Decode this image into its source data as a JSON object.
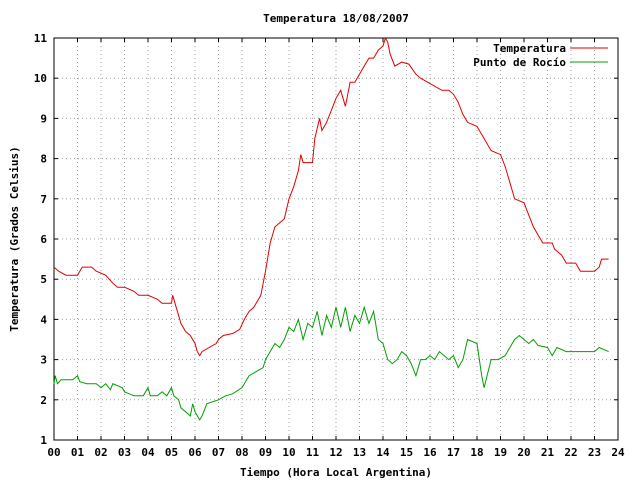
{
  "chart_data": {
    "type": "line",
    "title": "Temperatura 18/08/2007",
    "xlabel": "Tiempo (Hora Local Argentina)",
    "ylabel": "Temperatura (Grados Celsius)",
    "xlim": [
      0,
      24
    ],
    "ylim": [
      1,
      11
    ],
    "x_ticks": [
      "00",
      "01",
      "02",
      "03",
      "04",
      "05",
      "06",
      "07",
      "08",
      "09",
      "10",
      "11",
      "12",
      "13",
      "14",
      "15",
      "16",
      "17",
      "18",
      "19",
      "20",
      "21",
      "22",
      "23",
      "24"
    ],
    "y_ticks": [
      "1",
      "2",
      "3",
      "4",
      "5",
      "6",
      "7",
      "8",
      "9",
      "10",
      "11"
    ],
    "grid": true,
    "legend_position": "top-right",
    "series": [
      {
        "name": "Temperatura",
        "color": "#e00000",
        "points": [
          [
            0,
            5.3
          ],
          [
            0.2,
            5.2
          ],
          [
            0.5,
            5.1
          ],
          [
            1.0,
            5.1
          ],
          [
            1.2,
            5.3
          ],
          [
            1.6,
            5.3
          ],
          [
            1.8,
            5.2
          ],
          [
            2.2,
            5.1
          ],
          [
            2.5,
            4.9
          ],
          [
            2.7,
            4.8
          ],
          [
            3.0,
            4.8
          ],
          [
            3.4,
            4.7
          ],
          [
            3.6,
            4.6
          ],
          [
            4.0,
            4.6
          ],
          [
            4.4,
            4.5
          ],
          [
            4.6,
            4.4
          ],
          [
            5.0,
            4.4
          ],
          [
            5.05,
            4.6
          ],
          [
            5.2,
            4.3
          ],
          [
            5.4,
            3.9
          ],
          [
            5.6,
            3.7
          ],
          [
            5.8,
            3.6
          ],
          [
            6.0,
            3.4
          ],
          [
            6.1,
            3.2
          ],
          [
            6.2,
            3.1
          ],
          [
            6.3,
            3.2
          ],
          [
            6.6,
            3.3
          ],
          [
            6.9,
            3.4
          ],
          [
            7.0,
            3.5
          ],
          [
            7.2,
            3.6
          ],
          [
            7.6,
            3.65
          ],
          [
            7.9,
            3.75
          ],
          [
            8.1,
            4.0
          ],
          [
            8.3,
            4.2
          ],
          [
            8.5,
            4.3
          ],
          [
            8.8,
            4.6
          ],
          [
            9.0,
            5.2
          ],
          [
            9.2,
            5.9
          ],
          [
            9.4,
            6.3
          ],
          [
            9.6,
            6.4
          ],
          [
            9.8,
            6.5
          ],
          [
            10.0,
            7.0
          ],
          [
            10.2,
            7.3
          ],
          [
            10.4,
            7.7
          ],
          [
            10.5,
            8.1
          ],
          [
            10.6,
            7.9
          ],
          [
            11.0,
            7.9
          ],
          [
            11.1,
            8.5
          ],
          [
            11.3,
            9.0
          ],
          [
            11.4,
            8.7
          ],
          [
            11.6,
            8.9
          ],
          [
            11.8,
            9.2
          ],
          [
            12.0,
            9.5
          ],
          [
            12.2,
            9.7
          ],
          [
            12.4,
            9.3
          ],
          [
            12.6,
            9.9
          ],
          [
            12.8,
            9.9
          ],
          [
            13.0,
            10.1
          ],
          [
            13.2,
            10.3
          ],
          [
            13.4,
            10.5
          ],
          [
            13.6,
            10.5
          ],
          [
            13.8,
            10.7
          ],
          [
            14.0,
            10.8
          ],
          [
            14.1,
            11.0
          ],
          [
            14.2,
            10.9
          ],
          [
            14.3,
            10.6
          ],
          [
            14.5,
            10.3
          ],
          [
            14.8,
            10.4
          ],
          [
            15.1,
            10.35
          ],
          [
            15.4,
            10.1
          ],
          [
            15.6,
            10.0
          ],
          [
            15.9,
            9.9
          ],
          [
            16.2,
            9.8
          ],
          [
            16.5,
            9.7
          ],
          [
            16.8,
            9.7
          ],
          [
            17.0,
            9.6
          ],
          [
            17.2,
            9.4
          ],
          [
            17.4,
            9.1
          ],
          [
            17.6,
            8.9
          ],
          [
            18.0,
            8.8
          ],
          [
            18.3,
            8.5
          ],
          [
            18.6,
            8.2
          ],
          [
            19.0,
            8.1
          ],
          [
            19.2,
            7.8
          ],
          [
            19.4,
            7.4
          ],
          [
            19.6,
            7.0
          ],
          [
            20.0,
            6.9
          ],
          [
            20.2,
            6.6
          ],
          [
            20.4,
            6.3
          ],
          [
            20.6,
            6.1
          ],
          [
            20.8,
            5.9
          ],
          [
            21.2,
            5.9
          ],
          [
            21.3,
            5.75
          ],
          [
            21.6,
            5.6
          ],
          [
            21.8,
            5.4
          ],
          [
            22.2,
            5.4
          ],
          [
            22.4,
            5.2
          ],
          [
            23.0,
            5.2
          ],
          [
            23.2,
            5.3
          ],
          [
            23.3,
            5.5
          ],
          [
            23.6,
            5.5
          ]
        ]
      },
      {
        "name": "Punto de Rocío",
        "color": "#00a000",
        "points": [
          [
            0,
            2.4
          ],
          [
            0.05,
            2.6
          ],
          [
            0.15,
            2.4
          ],
          [
            0.3,
            2.5
          ],
          [
            0.8,
            2.5
          ],
          [
            1.0,
            2.6
          ],
          [
            1.1,
            2.45
          ],
          [
            1.4,
            2.4
          ],
          [
            1.8,
            2.4
          ],
          [
            2.0,
            2.3
          ],
          [
            2.2,
            2.4
          ],
          [
            2.4,
            2.25
          ],
          [
            2.5,
            2.4
          ],
          [
            2.9,
            2.3
          ],
          [
            3.0,
            2.2
          ],
          [
            3.4,
            2.1
          ],
          [
            3.8,
            2.1
          ],
          [
            4.0,
            2.3
          ],
          [
            4.1,
            2.1
          ],
          [
            4.4,
            2.1
          ],
          [
            4.6,
            2.2
          ],
          [
            4.8,
            2.1
          ],
          [
            5.0,
            2.3
          ],
          [
            5.1,
            2.1
          ],
          [
            5.3,
            2.0
          ],
          [
            5.4,
            1.8
          ],
          [
            5.6,
            1.7
          ],
          [
            5.8,
            1.6
          ],
          [
            5.9,
            1.9
          ],
          [
            6.0,
            1.7
          ],
          [
            6.2,
            1.5
          ],
          [
            6.3,
            1.6
          ],
          [
            6.5,
            1.9
          ],
          [
            7.0,
            2.0
          ],
          [
            7.3,
            2.1
          ],
          [
            7.6,
            2.15
          ],
          [
            8.0,
            2.3
          ],
          [
            8.3,
            2.6
          ],
          [
            8.6,
            2.7
          ],
          [
            8.9,
            2.8
          ],
          [
            9.0,
            3.0
          ],
          [
            9.2,
            3.2
          ],
          [
            9.4,
            3.4
          ],
          [
            9.6,
            3.3
          ],
          [
            9.8,
            3.5
          ],
          [
            10.0,
            3.8
          ],
          [
            10.2,
            3.7
          ],
          [
            10.4,
            4.0
          ],
          [
            10.6,
            3.5
          ],
          [
            10.8,
            3.9
          ],
          [
            11.0,
            3.8
          ],
          [
            11.2,
            4.2
          ],
          [
            11.4,
            3.6
          ],
          [
            11.6,
            4.1
          ],
          [
            11.8,
            3.8
          ],
          [
            12.0,
            4.3
          ],
          [
            12.2,
            3.8
          ],
          [
            12.4,
            4.3
          ],
          [
            12.6,
            3.7
          ],
          [
            12.8,
            4.1
          ],
          [
            13.0,
            3.9
          ],
          [
            13.2,
            4.3
          ],
          [
            13.4,
            3.9
          ],
          [
            13.6,
            4.2
          ],
          [
            13.8,
            3.5
          ],
          [
            14.0,
            3.4
          ],
          [
            14.2,
            3.0
          ],
          [
            14.4,
            2.9
          ],
          [
            14.6,
            3.0
          ],
          [
            14.8,
            3.2
          ],
          [
            15.0,
            3.1
          ],
          [
            15.2,
            2.9
          ],
          [
            15.4,
            2.6
          ],
          [
            15.6,
            3.0
          ],
          [
            15.8,
            3.0
          ],
          [
            16.0,
            3.1
          ],
          [
            16.2,
            3.0
          ],
          [
            16.4,
            3.2
          ],
          [
            16.6,
            3.1
          ],
          [
            16.8,
            3.0
          ],
          [
            17.0,
            3.1
          ],
          [
            17.2,
            2.8
          ],
          [
            17.4,
            3.0
          ],
          [
            17.6,
            3.5
          ],
          [
            18.0,
            3.4
          ],
          [
            18.2,
            2.6
          ],
          [
            18.3,
            2.3
          ],
          [
            18.6,
            3.0
          ],
          [
            18.9,
            3.0
          ],
          [
            19.2,
            3.1
          ],
          [
            19.4,
            3.3
          ],
          [
            19.6,
            3.5
          ],
          [
            19.8,
            3.6
          ],
          [
            20.0,
            3.5
          ],
          [
            20.2,
            3.4
          ],
          [
            20.4,
            3.5
          ],
          [
            20.6,
            3.35
          ],
          [
            21.0,
            3.3
          ],
          [
            21.2,
            3.1
          ],
          [
            21.4,
            3.3
          ],
          [
            21.8,
            3.2
          ],
          [
            22.2,
            3.2
          ],
          [
            22.6,
            3.2
          ],
          [
            23.0,
            3.2
          ],
          [
            23.2,
            3.3
          ],
          [
            23.6,
            3.2
          ]
        ]
      }
    ]
  }
}
